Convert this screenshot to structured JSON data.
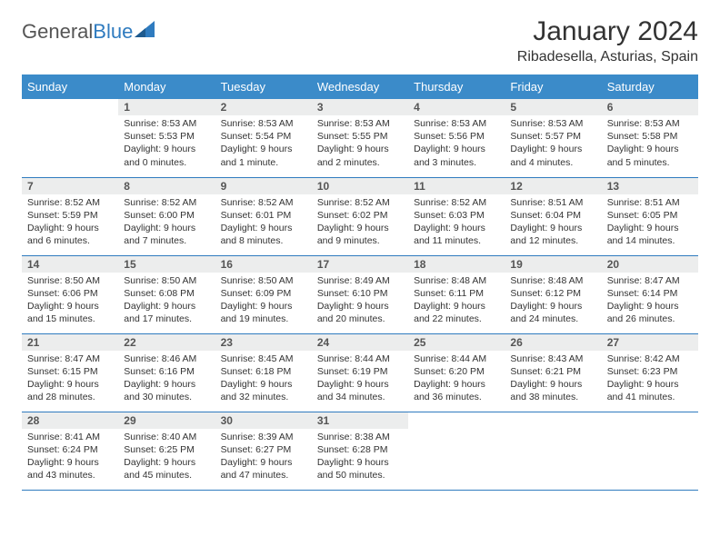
{
  "logo": {
    "text_gray": "General",
    "text_blue": "Blue"
  },
  "title": "January 2024",
  "location": "Ribadesella, Asturias, Spain",
  "colors": {
    "header_bg": "#3b8bc9",
    "header_text": "#ffffff",
    "daynum_bg": "#eceded",
    "row_border": "#2f7bbf",
    "logo_blue": "#2f7bbf",
    "logo_gray": "#555555"
  },
  "weekdays": [
    "Sunday",
    "Monday",
    "Tuesday",
    "Wednesday",
    "Thursday",
    "Friday",
    "Saturday"
  ],
  "weeks": [
    [
      {
        "empty": true
      },
      {
        "n": "1",
        "sr": "8:53 AM",
        "ss": "5:53 PM",
        "dl": "9 hours and 0 minutes."
      },
      {
        "n": "2",
        "sr": "8:53 AM",
        "ss": "5:54 PM",
        "dl": "9 hours and 1 minute."
      },
      {
        "n": "3",
        "sr": "8:53 AM",
        "ss": "5:55 PM",
        "dl": "9 hours and 2 minutes."
      },
      {
        "n": "4",
        "sr": "8:53 AM",
        "ss": "5:56 PM",
        "dl": "9 hours and 3 minutes."
      },
      {
        "n": "5",
        "sr": "8:53 AM",
        "ss": "5:57 PM",
        "dl": "9 hours and 4 minutes."
      },
      {
        "n": "6",
        "sr": "8:53 AM",
        "ss": "5:58 PM",
        "dl": "9 hours and 5 minutes."
      }
    ],
    [
      {
        "n": "7",
        "sr": "8:52 AM",
        "ss": "5:59 PM",
        "dl": "9 hours and 6 minutes."
      },
      {
        "n": "8",
        "sr": "8:52 AM",
        "ss": "6:00 PM",
        "dl": "9 hours and 7 minutes."
      },
      {
        "n": "9",
        "sr": "8:52 AM",
        "ss": "6:01 PM",
        "dl": "9 hours and 8 minutes."
      },
      {
        "n": "10",
        "sr": "8:52 AM",
        "ss": "6:02 PM",
        "dl": "9 hours and 9 minutes."
      },
      {
        "n": "11",
        "sr": "8:52 AM",
        "ss": "6:03 PM",
        "dl": "9 hours and 11 minutes."
      },
      {
        "n": "12",
        "sr": "8:51 AM",
        "ss": "6:04 PM",
        "dl": "9 hours and 12 minutes."
      },
      {
        "n": "13",
        "sr": "8:51 AM",
        "ss": "6:05 PM",
        "dl": "9 hours and 14 minutes."
      }
    ],
    [
      {
        "n": "14",
        "sr": "8:50 AM",
        "ss": "6:06 PM",
        "dl": "9 hours and 15 minutes."
      },
      {
        "n": "15",
        "sr": "8:50 AM",
        "ss": "6:08 PM",
        "dl": "9 hours and 17 minutes."
      },
      {
        "n": "16",
        "sr": "8:50 AM",
        "ss": "6:09 PM",
        "dl": "9 hours and 19 minutes."
      },
      {
        "n": "17",
        "sr": "8:49 AM",
        "ss": "6:10 PM",
        "dl": "9 hours and 20 minutes."
      },
      {
        "n": "18",
        "sr": "8:48 AM",
        "ss": "6:11 PM",
        "dl": "9 hours and 22 minutes."
      },
      {
        "n": "19",
        "sr": "8:48 AM",
        "ss": "6:12 PM",
        "dl": "9 hours and 24 minutes."
      },
      {
        "n": "20",
        "sr": "8:47 AM",
        "ss": "6:14 PM",
        "dl": "9 hours and 26 minutes."
      }
    ],
    [
      {
        "n": "21",
        "sr": "8:47 AM",
        "ss": "6:15 PM",
        "dl": "9 hours and 28 minutes."
      },
      {
        "n": "22",
        "sr": "8:46 AM",
        "ss": "6:16 PM",
        "dl": "9 hours and 30 minutes."
      },
      {
        "n": "23",
        "sr": "8:45 AM",
        "ss": "6:18 PM",
        "dl": "9 hours and 32 minutes."
      },
      {
        "n": "24",
        "sr": "8:44 AM",
        "ss": "6:19 PM",
        "dl": "9 hours and 34 minutes."
      },
      {
        "n": "25",
        "sr": "8:44 AM",
        "ss": "6:20 PM",
        "dl": "9 hours and 36 minutes."
      },
      {
        "n": "26",
        "sr": "8:43 AM",
        "ss": "6:21 PM",
        "dl": "9 hours and 38 minutes."
      },
      {
        "n": "27",
        "sr": "8:42 AM",
        "ss": "6:23 PM",
        "dl": "9 hours and 41 minutes."
      }
    ],
    [
      {
        "n": "28",
        "sr": "8:41 AM",
        "ss": "6:24 PM",
        "dl": "9 hours and 43 minutes."
      },
      {
        "n": "29",
        "sr": "8:40 AM",
        "ss": "6:25 PM",
        "dl": "9 hours and 45 minutes."
      },
      {
        "n": "30",
        "sr": "8:39 AM",
        "ss": "6:27 PM",
        "dl": "9 hours and 47 minutes."
      },
      {
        "n": "31",
        "sr": "8:38 AM",
        "ss": "6:28 PM",
        "dl": "9 hours and 50 minutes."
      },
      {
        "empty": true
      },
      {
        "empty": true
      },
      {
        "empty": true
      }
    ]
  ],
  "labels": {
    "sunrise": "Sunrise:",
    "sunset": "Sunset:",
    "daylight": "Daylight:"
  }
}
